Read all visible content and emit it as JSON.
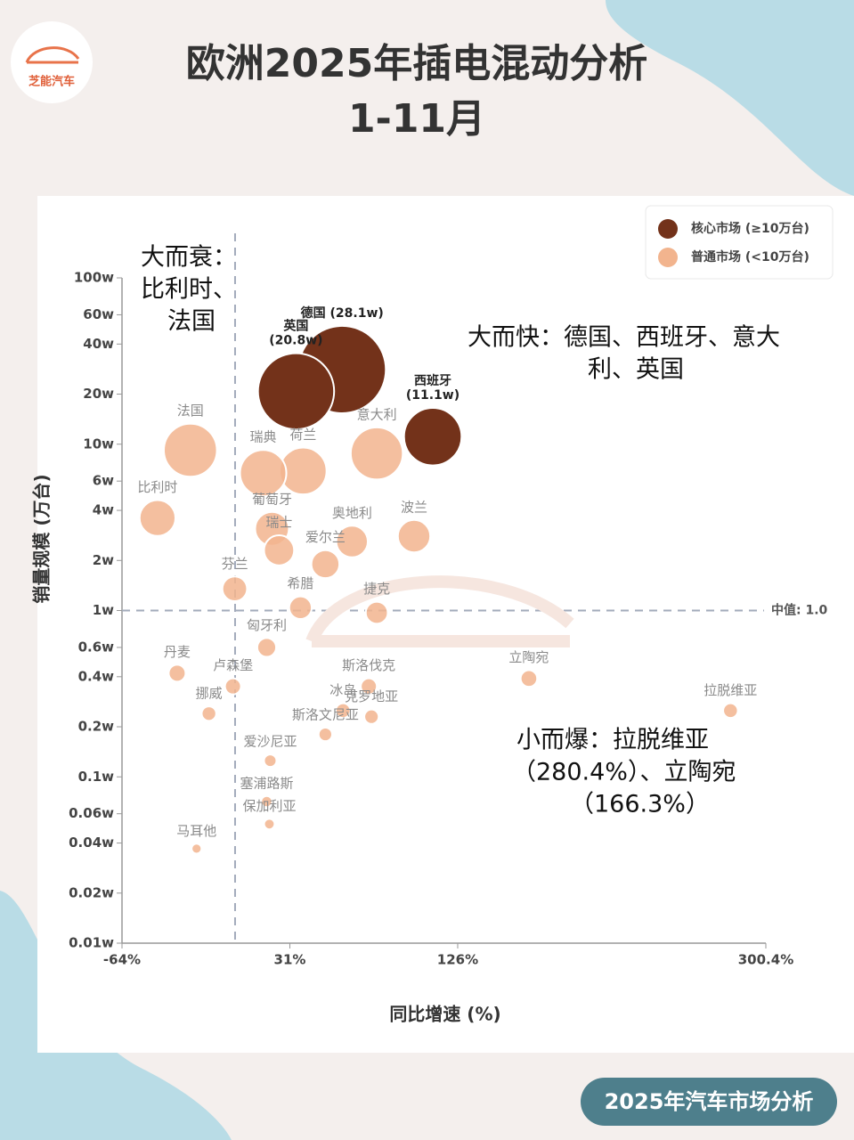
{
  "header": {
    "logo_text": "芝能汽车",
    "title": [
      "欧洲2025年插电混动分析",
      "1-11月"
    ]
  },
  "footer_badge": "2025年汽车市场分析",
  "chart_data": {
    "type": "scatter",
    "x_label": "同比增速 (%)",
    "y_label": "销量规模 (万台)",
    "xlim": [
      -64,
      300.4
    ],
    "xticks": [
      {
        "value": -64,
        "label": "-64%"
      },
      {
        "value": 31,
        "label": "31%"
      },
      {
        "value": 126,
        "label": "126%"
      },
      {
        "value": 300.4,
        "label": "300.4%"
      }
    ],
    "ylim": [
      0.01,
      100
    ],
    "log_y": true,
    "yticks": [
      {
        "value": 100,
        "label": "100w"
      },
      {
        "value": 60,
        "label": "60w"
      },
      {
        "value": 40,
        "label": "40w"
      },
      {
        "value": 20,
        "label": "20w"
      },
      {
        "value": 10,
        "label": "10w"
      },
      {
        "value": 6,
        "label": "6w"
      },
      {
        "value": 4,
        "label": "4w"
      },
      {
        "value": 2,
        "label": "2w"
      },
      {
        "value": 1,
        "label": "1w"
      },
      {
        "value": 0.6,
        "label": "0.6w"
      },
      {
        "value": 0.4,
        "label": "0.4w"
      },
      {
        "value": 0.2,
        "label": "0.2w"
      },
      {
        "value": 0.1,
        "label": "0.1w"
      },
      {
        "value": 0.06,
        "label": "0.06w"
      },
      {
        "value": 0.04,
        "label": "0.04w"
      },
      {
        "value": 0.02,
        "label": "0.02w"
      },
      {
        "value": 0.01,
        "label": "0.01w"
      }
    ],
    "median_y": {
      "value": 1,
      "label": "中值: 1.0"
    },
    "reference_x": 0,
    "legend": "top-right",
    "series": [
      {
        "name": "核心市场 (≥10万台)",
        "color": "#73321a",
        "labels": [
          [
            "德国 (28.1w)"
          ],
          [
            "英国",
            "(20.8w)"
          ],
          [
            "西班牙",
            "(11.1w)"
          ]
        ],
        "x": [
          60.6,
          34.5,
          111.9
        ],
        "values": [
          28.1,
          20.8,
          11.1
        ]
      },
      {
        "name": "普通市场 (<10万台)",
        "color": "#f2b48e",
        "labels": [
          [
            "意大利"
          ],
          [
            "法国"
          ],
          [
            "荷兰"
          ],
          [
            "瑞典"
          ],
          [
            "比利时"
          ],
          [
            "葡萄牙"
          ],
          [
            "瑞士"
          ],
          [
            "奥地利"
          ],
          [
            "波兰"
          ],
          [
            "爱尔兰"
          ],
          [
            "芬兰"
          ],
          [
            "希腊"
          ],
          [
            "捷克"
          ],
          [
            "匈牙利"
          ],
          [
            "丹麦"
          ],
          [
            "卢森堡"
          ],
          [
            "挪威"
          ],
          [
            "斯洛伐克"
          ],
          [
            "冰岛"
          ],
          [
            "克罗地亚"
          ],
          [
            "斯洛文尼亚"
          ],
          [
            "立陶宛"
          ],
          [
            "拉脱维亚"
          ],
          [
            "爱沙尼亚"
          ],
          [
            "塞浦路斯"
          ],
          [
            "保加利亚"
          ],
          [
            "马耳他"
          ]
        ],
        "x": [
          80.2,
          -25.3,
          38.5,
          15.9,
          -43.9,
          20.9,
          24.9,
          66.2,
          101.3,
          51.1,
          -0.2,
          37,
          80.2,
          17.9,
          -32.8,
          -1.2,
          -14.8,
          75.7,
          61.1,
          77.2,
          51.1,
          166.3,
          280.4,
          19.9,
          17.9,
          19.4,
          -21.8
        ],
        "values": [
          8.8,
          9.2,
          6.9,
          6.7,
          3.6,
          3.1,
          2.3,
          2.6,
          2.8,
          1.9,
          1.35,
          1.04,
          0.97,
          0.6,
          0.42,
          0.35,
          0.24,
          0.35,
          0.25,
          0.23,
          0.18,
          0.39,
          0.25,
          0.125,
          0.071,
          0.052,
          0.037
        ]
      }
    ],
    "annotations": [
      [
        "大而衰：",
        "比利时、",
        "法国"
      ],
      [
        "大而快：德国、西班牙、意大",
        "利、英国"
      ],
      [
        "小而爆：拉脱维亚",
        "（280.4%）、立陶宛",
        "（166.3%）"
      ]
    ]
  }
}
